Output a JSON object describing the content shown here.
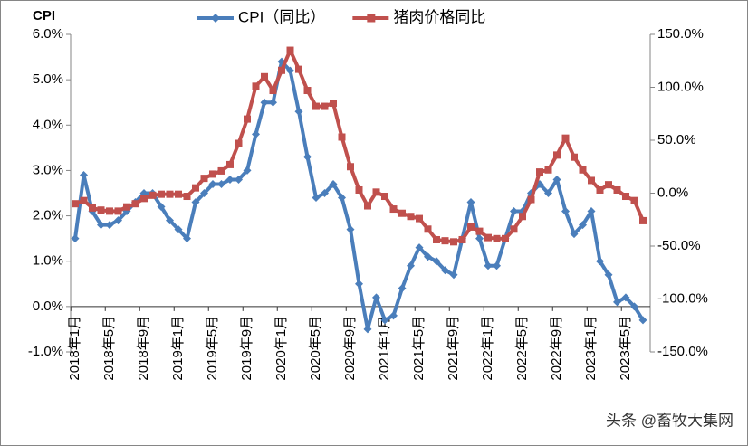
{
  "chart_data": {
    "type": "line",
    "y_axis_title": "CPI",
    "watermark": "头条 @畜牧大集网",
    "categories": [
      "2018年1月",
      null,
      null,
      null,
      "2018年5月",
      null,
      null,
      null,
      "2018年9月",
      null,
      null,
      null,
      "2019年1月",
      null,
      null,
      null,
      "2019年5月",
      null,
      null,
      null,
      "2019年9月",
      null,
      null,
      null,
      "2020年1月",
      null,
      null,
      null,
      "2020年5月",
      null,
      null,
      null,
      "2020年9月",
      null,
      null,
      null,
      "2021年1月",
      null,
      null,
      null,
      "2021年5月",
      null,
      null,
      null,
      "2021年9月",
      null,
      null,
      null,
      "2022年1月",
      null,
      null,
      null,
      "2022年5月",
      null,
      null,
      null,
      "2022年9月",
      null,
      null,
      null,
      "2023年1月",
      null,
      null,
      null,
      "2023年5月",
      null,
      null
    ],
    "series": [
      {
        "name": "CPI（同比）",
        "color": "#4a7ebb",
        "marker": "diamond",
        "axis": "y",
        "values": [
          1.5,
          2.9,
          2.1,
          1.8,
          1.8,
          1.9,
          2.1,
          2.3,
          2.5,
          2.5,
          2.2,
          1.9,
          1.7,
          1.5,
          2.3,
          2.5,
          2.7,
          2.7,
          2.8,
          2.8,
          3.0,
          3.8,
          4.5,
          4.5,
          5.4,
          5.2,
          4.3,
          3.3,
          2.4,
          2.5,
          2.7,
          2.4,
          1.7,
          0.5,
          -0.5,
          0.2,
          -0.3,
          -0.2,
          0.4,
          0.9,
          1.3,
          1.1,
          1.0,
          0.8,
          0.7,
          1.5,
          2.3,
          1.5,
          0.9,
          0.9,
          1.5,
          2.1,
          2.1,
          2.5,
          2.7,
          2.5,
          2.8,
          2.1,
          1.6,
          1.8,
          2.1,
          1.0,
          0.7,
          0.1,
          0.2,
          0.0,
          -0.3
        ]
      },
      {
        "name": "猪肉价格同比",
        "color": "#c0504d",
        "marker": "square",
        "axis": "y2",
        "values": [
          -10,
          -7,
          -14,
          -16,
          -17,
          -17,
          -13,
          -10,
          -5,
          -2,
          -1,
          -1,
          -1,
          -3,
          5,
          14,
          18,
          21,
          27,
          47,
          70,
          101,
          110,
          97,
          116,
          135,
          117,
          97,
          82,
          82,
          85,
          53,
          25,
          3,
          -12,
          1,
          -3,
          -15,
          -19,
          -22,
          -24,
          -34,
          -44,
          -45,
          -46,
          -44,
          -32,
          -36,
          -42,
          -43,
          -43,
          -34,
          -22,
          -6,
          20,
          22,
          36,
          52,
          34,
          22,
          12,
          3,
          8,
          3,
          -3,
          -7,
          -26
        ]
      }
    ],
    "ylim": [
      -1,
      6
    ],
    "yticks": [
      {
        "value": -1,
        "label": "-1.0%"
      },
      {
        "value": 0,
        "label": "0.0%"
      },
      {
        "value": 1,
        "label": "1.0%"
      },
      {
        "value": 2,
        "label": "2.0%"
      },
      {
        "value": 3,
        "label": "3.0%"
      },
      {
        "value": 4,
        "label": "4.0%"
      },
      {
        "value": 5,
        "label": "5.0%"
      },
      {
        "value": 6,
        "label": "6.0%"
      }
    ],
    "y2lim": [
      -150,
      150
    ],
    "y2ticks": [
      {
        "value": -150,
        "label": "-150.0%"
      },
      {
        "value": -100,
        "label": "-100.0%"
      },
      {
        "value": -50,
        "label": "-50.0%"
      },
      {
        "value": 0,
        "label": "0.0%"
      },
      {
        "value": 50,
        "label": "50.0%"
      },
      {
        "value": 100,
        "label": "100.0%"
      },
      {
        "value": 150,
        "label": "150.0%"
      }
    ],
    "legend": "top"
  }
}
